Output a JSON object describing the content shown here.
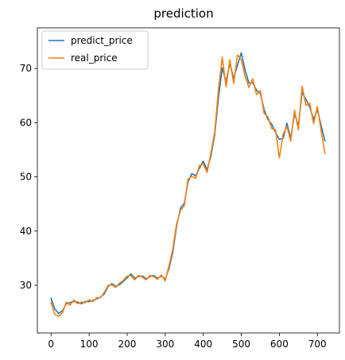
{
  "chart_data": {
    "type": "line",
    "title": "prediction",
    "xlabel": "",
    "ylabel": "",
    "xlim": [
      -36,
      758
    ],
    "ylim": [
      21.2,
      77.5
    ],
    "xticks": [
      0,
      100,
      200,
      300,
      400,
      500,
      600,
      700
    ],
    "yticks": [
      30,
      40,
      50,
      60,
      70
    ],
    "grid": false,
    "legend_position": "top-left",
    "series": [
      {
        "name": "predict_price",
        "color": "#1f77b4",
        "x": [
          0,
          10,
          20,
          30,
          40,
          50,
          60,
          70,
          80,
          90,
          100,
          110,
          120,
          130,
          140,
          150,
          160,
          170,
          180,
          190,
          200,
          210,
          220,
          230,
          240,
          250,
          260,
          270,
          280,
          290,
          300,
          310,
          320,
          330,
          340,
          350,
          360,
          370,
          380,
          390,
          400,
          410,
          420,
          430,
          440,
          450,
          460,
          470,
          480,
          490,
          500,
          510,
          520,
          530,
          540,
          550,
          560,
          570,
          580,
          590,
          600,
          610,
          620,
          630,
          640,
          650,
          660,
          670,
          680,
          690,
          700,
          710,
          720
        ],
        "values": [
          27.6,
          25.6,
          24.8,
          25.3,
          26.6,
          26.8,
          27.0,
          26.9,
          26.6,
          27.0,
          27.0,
          27.2,
          27.5,
          27.8,
          28.4,
          29.8,
          30.3,
          29.8,
          30.1,
          30.7,
          31.4,
          32.1,
          31.3,
          31.6,
          31.7,
          31.2,
          31.6,
          31.8,
          31.3,
          31.7,
          31.1,
          33.1,
          36.1,
          40.9,
          44.2,
          45.1,
          49.1,
          50.6,
          50.2,
          51.6,
          52.9,
          51.3,
          53.8,
          57.7,
          64.6,
          70.1,
          67.6,
          70.9,
          68.2,
          70.6,
          72.9,
          69.7,
          67.3,
          67.4,
          66.0,
          65.4,
          62.4,
          60.6,
          59.7,
          58.2,
          56.9,
          57.1,
          59.9,
          57.1,
          61.7,
          59.4,
          65.6,
          64.3,
          62.9,
          60.6,
          62.4,
          59.4,
          56.6
        ]
      },
      {
        "name": "real_price",
        "color": "#ff7f0e",
        "x": [
          0,
          10,
          20,
          30,
          40,
          50,
          60,
          70,
          80,
          90,
          100,
          110,
          120,
          130,
          140,
          150,
          160,
          170,
          180,
          190,
          200,
          210,
          220,
          230,
          240,
          250,
          260,
          270,
          280,
          290,
          300,
          310,
          320,
          330,
          340,
          350,
          360,
          370,
          380,
          390,
          400,
          410,
          420,
          430,
          440,
          450,
          460,
          470,
          480,
          490,
          500,
          510,
          520,
          530,
          540,
          550,
          560,
          570,
          580,
          590,
          600,
          610,
          620,
          630,
          640,
          650,
          660,
          670,
          680,
          690,
          700,
          710,
          720
        ],
        "values": [
          26.9,
          24.6,
          24.3,
          24.9,
          26.9,
          26.3,
          27.3,
          26.6,
          26.9,
          26.8,
          27.3,
          27.0,
          27.7,
          27.7,
          28.7,
          30.0,
          30.1,
          29.6,
          30.4,
          30.9,
          31.7,
          31.8,
          31.0,
          31.8,
          31.5,
          31.0,
          31.8,
          31.6,
          31.1,
          31.9,
          30.8,
          33.6,
          36.7,
          41.3,
          43.8,
          44.6,
          49.6,
          50.1,
          49.7,
          52.1,
          52.4,
          50.8,
          54.4,
          58.2,
          66.1,
          72.1,
          66.6,
          71.6,
          67.2,
          72.5,
          71.6,
          68.6,
          66.5,
          68.1,
          65.2,
          65.9,
          61.7,
          61.1,
          58.9,
          58.7,
          53.5,
          57.9,
          59.3,
          56.6,
          62.3,
          58.7,
          66.7,
          63.2,
          63.6,
          59.8,
          63.0,
          58.4,
          54.3
        ]
      }
    ]
  }
}
